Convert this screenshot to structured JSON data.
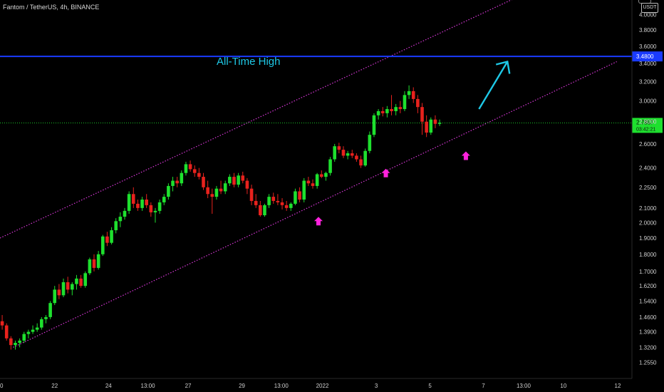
{
  "header": {
    "title": "Fantom / TetherUS, 4h, BINANCE",
    "currency": "USDT"
  },
  "annotations": {
    "ath_label": "All-Time High"
  },
  "colors": {
    "background": "#000000",
    "up": "#1ee02e",
    "down": "#e8221d",
    "channel": "#d837d8",
    "ath_line": "#1a3bff",
    "arrow": "#1ec8e6",
    "marker": "#ff22dd",
    "current_price_line": "#1ee02e"
  },
  "chart_data": {
    "type": "candlestick",
    "symbol": "FTMUSDT",
    "timeframe": "4h",
    "exchange": "BINANCE",
    "y_scale": "log",
    "ylim": [
      1.19,
      4.2
    ],
    "y_ticks": [
      "4.0000",
      "3.8000",
      "3.6000",
      "3.4000",
      "3.2000",
      "3.0000",
      "2.8000",
      "2.6000",
      "2.4000",
      "2.2500",
      "2.1000",
      "2.0000",
      "1.9000",
      "1.8000",
      "1.7000",
      "1.6200",
      "1.5400",
      "1.4600",
      "1.3900",
      "1.3200",
      "1.2550"
    ],
    "x_ticks": [
      {
        "label": "0",
        "bar": 0
      },
      {
        "label": "22",
        "bar": 12.5
      },
      {
        "label": "24",
        "bar": 24.8
      },
      {
        "label": "13:00",
        "bar": 33.8
      },
      {
        "label": "27",
        "bar": 43
      },
      {
        "label": "29",
        "bar": 55.3
      },
      {
        "label": "13:00",
        "bar": 64.3
      },
      {
        "label": "2022",
        "bar": 73.7
      },
      {
        "label": "3",
        "bar": 86
      },
      {
        "label": "5",
        "bar": 98.3
      },
      {
        "label": "7",
        "bar": 110.5
      },
      {
        "label": "13:00",
        "bar": 119.7
      },
      {
        "label": "10",
        "bar": 128.8
      },
      {
        "label": "12",
        "bar": 141.2
      }
    ],
    "ath": {
      "value": 3.48,
      "label": "3.4800"
    },
    "last_price": {
      "value": 2.7887,
      "label": "2.7887",
      "countdown": "03:42:21"
    },
    "channel": {
      "upper": [
        {
          "bar": 0,
          "price": 1.9
        },
        {
          "bar": 127,
          "price": 4.5
        }
      ],
      "lower": [
        {
          "bar": 3,
          "price": 1.32
        },
        {
          "bar": 141,
          "price": 3.42
        }
      ]
    },
    "markers": [
      {
        "bar": 72.8,
        "price": 2.01
      },
      {
        "bar": 88.2,
        "price": 2.36
      },
      {
        "bar": 106.5,
        "price": 2.5
      }
    ],
    "projection_arrow": {
      "from": {
        "bar": 109.5,
        "price": 2.92
      },
      "to": {
        "bar": 116,
        "price": 3.42
      }
    },
    "candles": [
      [
        1.44,
        1.47,
        1.4,
        1.42
      ],
      [
        1.42,
        1.43,
        1.35,
        1.36
      ],
      [
        1.36,
        1.37,
        1.31,
        1.33
      ],
      [
        1.33,
        1.35,
        1.31,
        1.34
      ],
      [
        1.34,
        1.36,
        1.32,
        1.35
      ],
      [
        1.35,
        1.39,
        1.34,
        1.38
      ],
      [
        1.38,
        1.4,
        1.36,
        1.39
      ],
      [
        1.39,
        1.42,
        1.38,
        1.4
      ],
      [
        1.4,
        1.43,
        1.39,
        1.41
      ],
      [
        1.41,
        1.46,
        1.4,
        1.45
      ],
      [
        1.45,
        1.47,
        1.43,
        1.46
      ],
      [
        1.46,
        1.54,
        1.45,
        1.53
      ],
      [
        1.53,
        1.62,
        1.52,
        1.6
      ],
      [
        1.6,
        1.63,
        1.55,
        1.57
      ],
      [
        1.57,
        1.66,
        1.56,
        1.64
      ],
      [
        1.64,
        1.67,
        1.58,
        1.6
      ],
      [
        1.6,
        1.64,
        1.57,
        1.63
      ],
      [
        1.63,
        1.68,
        1.6,
        1.66
      ],
      [
        1.66,
        1.68,
        1.61,
        1.62
      ],
      [
        1.62,
        1.7,
        1.61,
        1.69
      ],
      [
        1.69,
        1.78,
        1.68,
        1.77
      ],
      [
        1.77,
        1.8,
        1.7,
        1.72
      ],
      [
        1.72,
        1.82,
        1.71,
        1.8
      ],
      [
        1.8,
        1.92,
        1.79,
        1.91
      ],
      [
        1.91,
        1.94,
        1.85,
        1.87
      ],
      [
        1.87,
        1.97,
        1.86,
        1.95
      ],
      [
        1.95,
        2.03,
        1.93,
        2.01
      ],
      [
        2.01,
        2.07,
        1.97,
        2.04
      ],
      [
        2.04,
        2.1,
        2.02,
        2.08
      ],
      [
        2.08,
        2.22,
        2.06,
        2.2
      ],
      [
        2.2,
        2.25,
        2.1,
        2.13
      ],
      [
        2.13,
        2.16,
        2.08,
        2.1
      ],
      [
        2.1,
        2.18,
        2.08,
        2.16
      ],
      [
        2.16,
        2.2,
        2.1,
        2.12
      ],
      [
        2.12,
        2.14,
        2.04,
        2.07
      ],
      [
        2.07,
        2.1,
        2.0,
        2.08
      ],
      [
        2.08,
        2.16,
        2.06,
        2.14
      ],
      [
        2.14,
        2.2,
        2.12,
        2.18
      ],
      [
        2.18,
        2.28,
        2.16,
        2.26
      ],
      [
        2.26,
        2.33,
        2.22,
        2.3
      ],
      [
        2.3,
        2.33,
        2.25,
        2.28
      ],
      [
        2.28,
        2.38,
        2.26,
        2.36
      ],
      [
        2.36,
        2.45,
        2.34,
        2.43
      ],
      [
        2.43,
        2.46,
        2.37,
        2.39
      ],
      [
        2.39,
        2.42,
        2.33,
        2.36
      ],
      [
        2.36,
        2.4,
        2.31,
        2.33
      ],
      [
        2.33,
        2.36,
        2.23,
        2.25
      ],
      [
        2.25,
        2.3,
        2.17,
        2.2
      ],
      [
        2.2,
        2.24,
        2.06,
        2.18
      ],
      [
        2.18,
        2.26,
        2.16,
        2.24
      ],
      [
        2.24,
        2.3,
        2.2,
        2.22
      ],
      [
        2.22,
        2.3,
        2.2,
        2.28
      ],
      [
        2.28,
        2.35,
        2.26,
        2.33
      ],
      [
        2.33,
        2.36,
        2.25,
        2.27
      ],
      [
        2.27,
        2.36,
        2.25,
        2.34
      ],
      [
        2.34,
        2.37,
        2.28,
        2.3
      ],
      [
        2.3,
        2.32,
        2.2,
        2.24
      ],
      [
        2.24,
        2.27,
        2.12,
        2.15
      ],
      [
        2.15,
        2.2,
        2.1,
        2.12
      ],
      [
        2.12,
        2.15,
        2.04,
        2.05
      ],
      [
        2.05,
        2.13,
        2.04,
        2.12
      ],
      [
        2.12,
        2.2,
        2.1,
        2.18
      ],
      [
        2.18,
        2.21,
        2.13,
        2.15
      ],
      [
        2.15,
        2.2,
        2.12,
        2.14
      ],
      [
        2.14,
        2.17,
        2.09,
        2.12
      ],
      [
        2.12,
        2.15,
        2.08,
        2.1
      ],
      [
        2.1,
        2.14,
        2.08,
        2.13
      ],
      [
        2.13,
        2.24,
        2.12,
        2.22
      ],
      [
        2.22,
        2.25,
        2.14,
        2.16
      ],
      [
        2.16,
        2.32,
        2.14,
        2.3
      ],
      [
        2.3,
        2.33,
        2.26,
        2.28
      ],
      [
        2.28,
        2.31,
        2.24,
        2.26
      ],
      [
        2.26,
        2.36,
        2.24,
        2.35
      ],
      [
        2.35,
        2.38,
        2.32,
        2.33
      ],
      [
        2.33,
        2.37,
        2.3,
        2.36
      ],
      [
        2.36,
        2.49,
        2.34,
        2.47
      ],
      [
        2.47,
        2.6,
        2.45,
        2.58
      ],
      [
        2.58,
        2.61,
        2.52,
        2.55
      ],
      [
        2.55,
        2.58,
        2.48,
        2.5
      ],
      [
        2.5,
        2.54,
        2.47,
        2.52
      ],
      [
        2.52,
        2.55,
        2.48,
        2.5
      ],
      [
        2.5,
        2.52,
        2.45,
        2.47
      ],
      [
        2.47,
        2.5,
        2.4,
        2.42
      ],
      [
        2.42,
        2.56,
        2.41,
        2.54
      ],
      [
        2.54,
        2.71,
        2.52,
        2.68
      ],
      [
        2.68,
        2.88,
        2.66,
        2.86
      ],
      [
        2.86,
        2.92,
        2.82,
        2.9
      ],
      [
        2.9,
        2.94,
        2.85,
        2.88
      ],
      [
        2.88,
        2.95,
        2.84,
        2.92
      ],
      [
        2.92,
        3.06,
        2.86,
        2.9
      ],
      [
        2.9,
        2.97,
        2.86,
        2.94
      ],
      [
        2.94,
        3.0,
        2.88,
        2.92
      ],
      [
        2.92,
        3.1,
        2.9,
        3.06
      ],
      [
        3.06,
        3.16,
        3.02,
        3.1
      ],
      [
        3.1,
        3.14,
        2.98,
        3.02
      ],
      [
        3.02,
        3.06,
        2.88,
        2.94
      ],
      [
        2.94,
        2.98,
        2.68,
        2.8
      ],
      [
        2.8,
        2.86,
        2.66,
        2.7
      ],
      [
        2.7,
        2.84,
        2.68,
        2.82
      ],
      [
        2.82,
        2.86,
        2.74,
        2.78
      ],
      [
        2.78,
        2.82,
        2.76,
        2.79
      ]
    ]
  }
}
